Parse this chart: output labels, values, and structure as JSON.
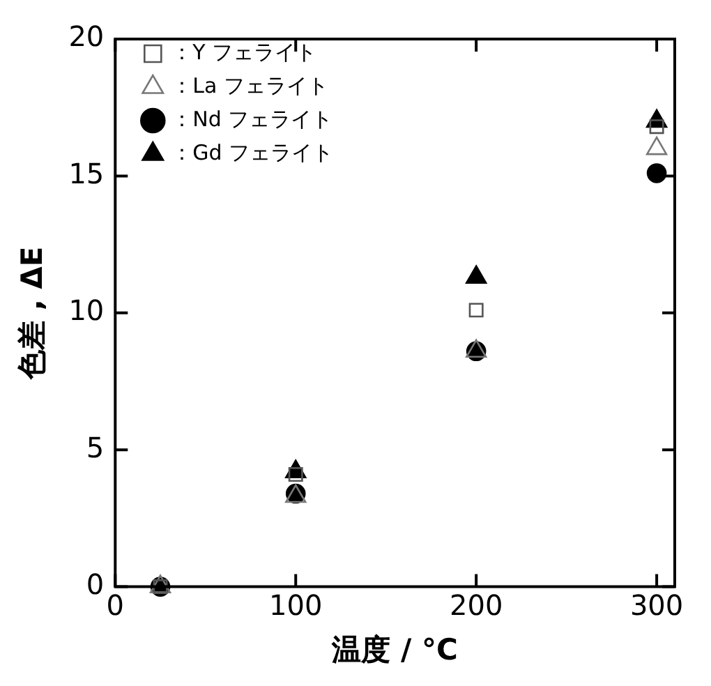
{
  "chart_data": {
    "type": "scatter",
    "xlabel": "温度 / °C",
    "ylabel": "色差 , ΔE",
    "x": [
      25,
      100,
      200,
      300
    ],
    "series": [
      {
        "name": "：Y フェライト",
        "color": "#555555",
        "marker": "square",
        "values": [
          0,
          4.1,
          10.1,
          16.8
        ]
      },
      {
        "name": "：La フェライト",
        "color": "#777777",
        "marker": "triangle",
        "values": [
          0,
          3.3,
          8.6,
          16.0
        ]
      },
      {
        "name": "：Nd フェライト",
        "color": "#000000",
        "marker": "circle",
        "values": [
          0,
          3.4,
          8.6,
          15.1
        ]
      },
      {
        "name": "：Gd フェライト",
        "color": "#000000",
        "marker": "triangle",
        "values": [
          null,
          4.2,
          11.3,
          17.0
        ]
      }
    ],
    "xlim": [
      0,
      310
    ],
    "xticks": [
      0,
      100,
      200,
      300
    ],
    "ylim": [
      0,
      20
    ],
    "yticks": [
      0,
      5,
      10,
      15,
      20
    ],
    "grid": false,
    "legend": "top left"
  }
}
